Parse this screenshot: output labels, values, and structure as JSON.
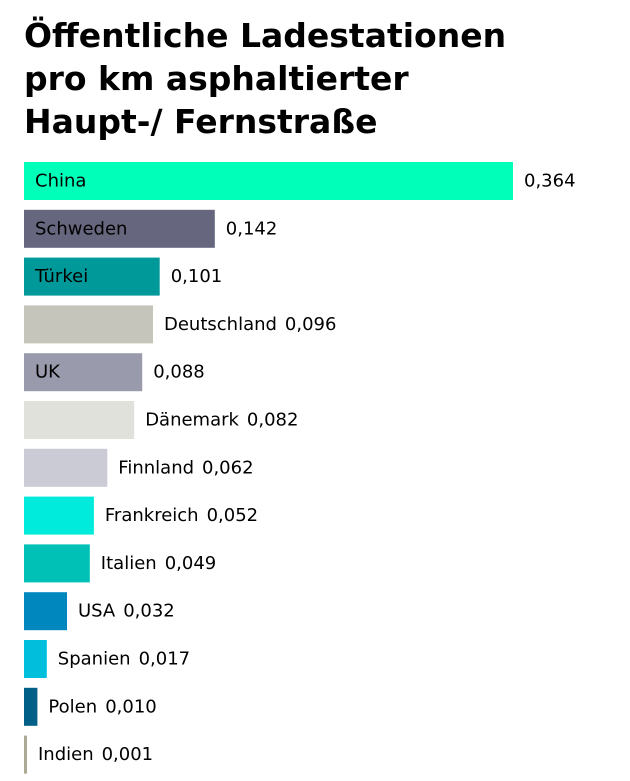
{
  "chart_data": {
    "type": "bar",
    "orientation": "horizontal",
    "title_lines": [
      "Öffentliche Ladestationen",
      "pro km asphaltierter",
      "Haupt-/ Fernstraße"
    ],
    "categories": [
      "China",
      "Schweden",
      "Türkei",
      "Deutschland",
      "UK",
      "Dänemark",
      "Finnland",
      "Frankreich",
      "Italien",
      "USA",
      "Spanien",
      "Polen",
      "Indien"
    ],
    "values": [
      0.364,
      0.142,
      0.101,
      0.096,
      0.088,
      0.082,
      0.062,
      0.052,
      0.049,
      0.032,
      0.017,
      0.01,
      0.001
    ],
    "value_labels": [
      "0,364",
      "0,142",
      "0,101",
      "0,096",
      "0,088",
      "0,082",
      "0,062",
      "0,052",
      "0,049",
      "0,032",
      "0,017",
      "0,010",
      "0,001"
    ],
    "colors": [
      "#00FFB9",
      "#66667E",
      "#009999",
      "#C5C5BB",
      "#9A9AAD",
      "#E1E1DC",
      "#CBCBD5",
      "#00EBDC",
      "#00C1B6",
      "#0087BE",
      "#00BEDC",
      "#005F87",
      "#AAAA96"
    ],
    "xlim": [
      0,
      0.364
    ],
    "grid": false,
    "legend": "none"
  }
}
